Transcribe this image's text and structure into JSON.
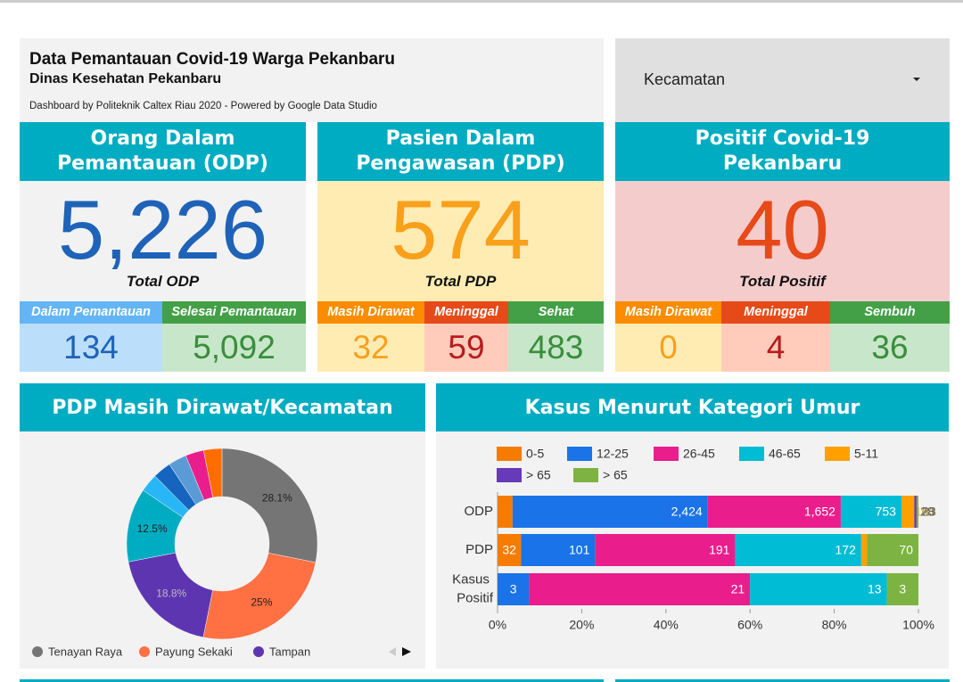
{
  "header": {
    "title": "Data Pemantauan Covid-19 Warga Pekanbaru",
    "subtitle": "Dinas Kesehatan Pekanbaru",
    "credit": "Dashboard by Politeknik Caltex Riau 2020 - Powered by Google Data Studio"
  },
  "dropdown": {
    "label": "Kecamatan"
  },
  "cards": [
    {
      "title": "Orang Dalam Pemantauan (ODP)",
      "total": "5,226",
      "total_label": "Total ODP",
      "breakdown": [
        {
          "label": "Dalam Pemantauan",
          "value": "134"
        },
        {
          "label": "Selesai Pemantauan",
          "value": "5,092"
        }
      ]
    },
    {
      "title": "Pasien Dalam Pengawasan (PDP)",
      "total": "574",
      "total_label": "Total PDP",
      "breakdown": [
        {
          "label": "Masih Dirawat",
          "value": "32"
        },
        {
          "label": "Meninggal",
          "value": "59"
        },
        {
          "label": "Sehat",
          "value": "483"
        }
      ]
    },
    {
      "title": "Positif Covid-19 Pekanbaru",
      "total": "40",
      "total_label": "Total Positif",
      "breakdown": [
        {
          "label": "Masih Dirawat",
          "value": "0"
        },
        {
          "label": "Meninggal",
          "value": "4"
        },
        {
          "label": "Sembuh",
          "value": "36"
        }
      ]
    }
  ],
  "chart_data": [
    {
      "type": "pie",
      "donut": true,
      "title": "PDP Masih Dirawat/Kecamatan",
      "categories": [
        "Tenayan Raya",
        "Payung Sekaki",
        "Tampan",
        null,
        null,
        null,
        null,
        null,
        null
      ],
      "values": [
        28.1,
        25,
        18.8,
        12.5,
        3.1,
        3.1,
        3.1,
        3.1,
        3.1
      ],
      "value_labels": [
        "28.1%",
        "25%",
        "18.8%",
        "12.5%",
        null,
        null,
        null,
        null,
        null
      ],
      "colors": [
        "#757575",
        "#ff7043",
        "#5e35b1",
        "#00acc1",
        "#29b6f6",
        "#1565c0",
        "#5b9bd5",
        "#e91e8c",
        "#ff6d00"
      ],
      "legend": "bottom"
    },
    {
      "type": "bar",
      "orientation": "horizontal",
      "stacked": "percent",
      "title": "Kasus Menurut Kategori Umur",
      "categories": [
        "ODP",
        "PDP",
        "Kasus Positif"
      ],
      "series": [
        {
          "name": "0-5",
          "color": "#f57c00",
          "values": [
            186,
            32,
            0
          ]
        },
        {
          "name": "12-25",
          "color": "#1a73e8",
          "values": [
            2424,
            101,
            3
          ],
          "value_labels": [
            "2,424",
            "101",
            "3"
          ]
        },
        {
          "name": "26-45",
          "color": "#e91e8c",
          "values": [
            1652,
            191,
            21
          ],
          "value_labels": [
            "1,652",
            "191",
            "21"
          ]
        },
        {
          "name": "46-65",
          "color": "#00bcd4",
          "values": [
            753,
            172,
            13
          ]
        },
        {
          "name": "5-11",
          "color": "#ffa000",
          "values": [
            160,
            8,
            0
          ]
        },
        {
          "name": "> 65",
          "color": "#673ab7",
          "values": [
            28,
            0,
            0
          ]
        },
        {
          "name": "> 65",
          "color": "#7cb342",
          "values": [
            23,
            70,
            3
          ]
        }
      ],
      "xlim": [
        0,
        100
      ],
      "xticks": [
        {
          "value": 0,
          "label": "0%"
        },
        {
          "value": 20,
          "label": "20%"
        },
        {
          "value": 40,
          "label": "40%"
        },
        {
          "value": 60,
          "label": "60%"
        },
        {
          "value": 80,
          "label": "80%"
        },
        {
          "value": 100,
          "label": "100%"
        }
      ],
      "legend": "top"
    }
  ]
}
